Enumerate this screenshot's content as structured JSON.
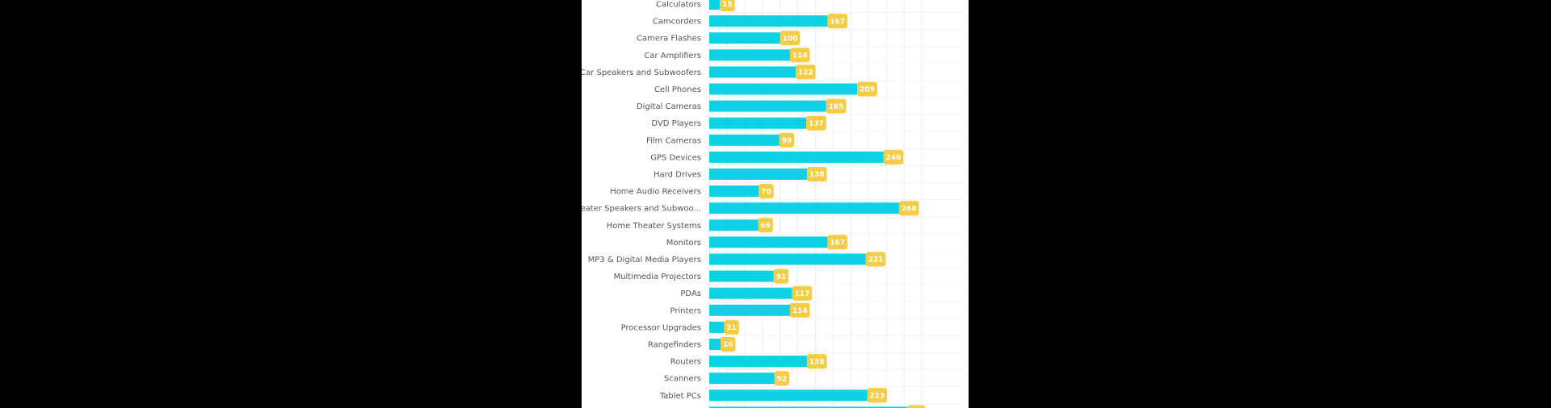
{
  "chart_data": {
    "type": "bar",
    "orientation": "horizontal",
    "categories": [
      "Calculators",
      "Camcorders",
      "Camera Flashes",
      "Car Amplifiers",
      "Car Speakers and Subwoofers",
      "Cell Phones",
      "Digital Cameras",
      "DVD Players",
      "Film Cameras",
      "GPS Devices",
      "Hard Drives",
      "Home Audio Receivers",
      "ome Theater Speakers and Subwoo...",
      "Home Theater Systems",
      "Monitors",
      "MP3 & Digital Media Players",
      "Multimedia Projectors",
      "PDAs",
      "Printers",
      "Processor Upgrades",
      "Rangefinders",
      "Routers",
      "Scanners",
      "Tablet PCs"
    ],
    "values": [
      15,
      167,
      100,
      114,
      122,
      209,
      165,
      137,
      99,
      246,
      138,
      70,
      268,
      69,
      167,
      221,
      91,
      117,
      114,
      21,
      16,
      138,
      92,
      223
    ],
    "value_labels": [
      "15",
      "167",
      "100",
      "114",
      "122",
      "209",
      "165",
      "137",
      "99",
      "246",
      "138",
      "70",
      "268",
      "69",
      "167",
      "221",
      "91",
      "117",
      "114",
      "21",
      "16",
      "138",
      "92",
      "223"
    ],
    "xlim": [
      0,
      300
    ],
    "grid": true,
    "bar_color": "#0fd1e6",
    "label_color": "#f5cc45"
  }
}
